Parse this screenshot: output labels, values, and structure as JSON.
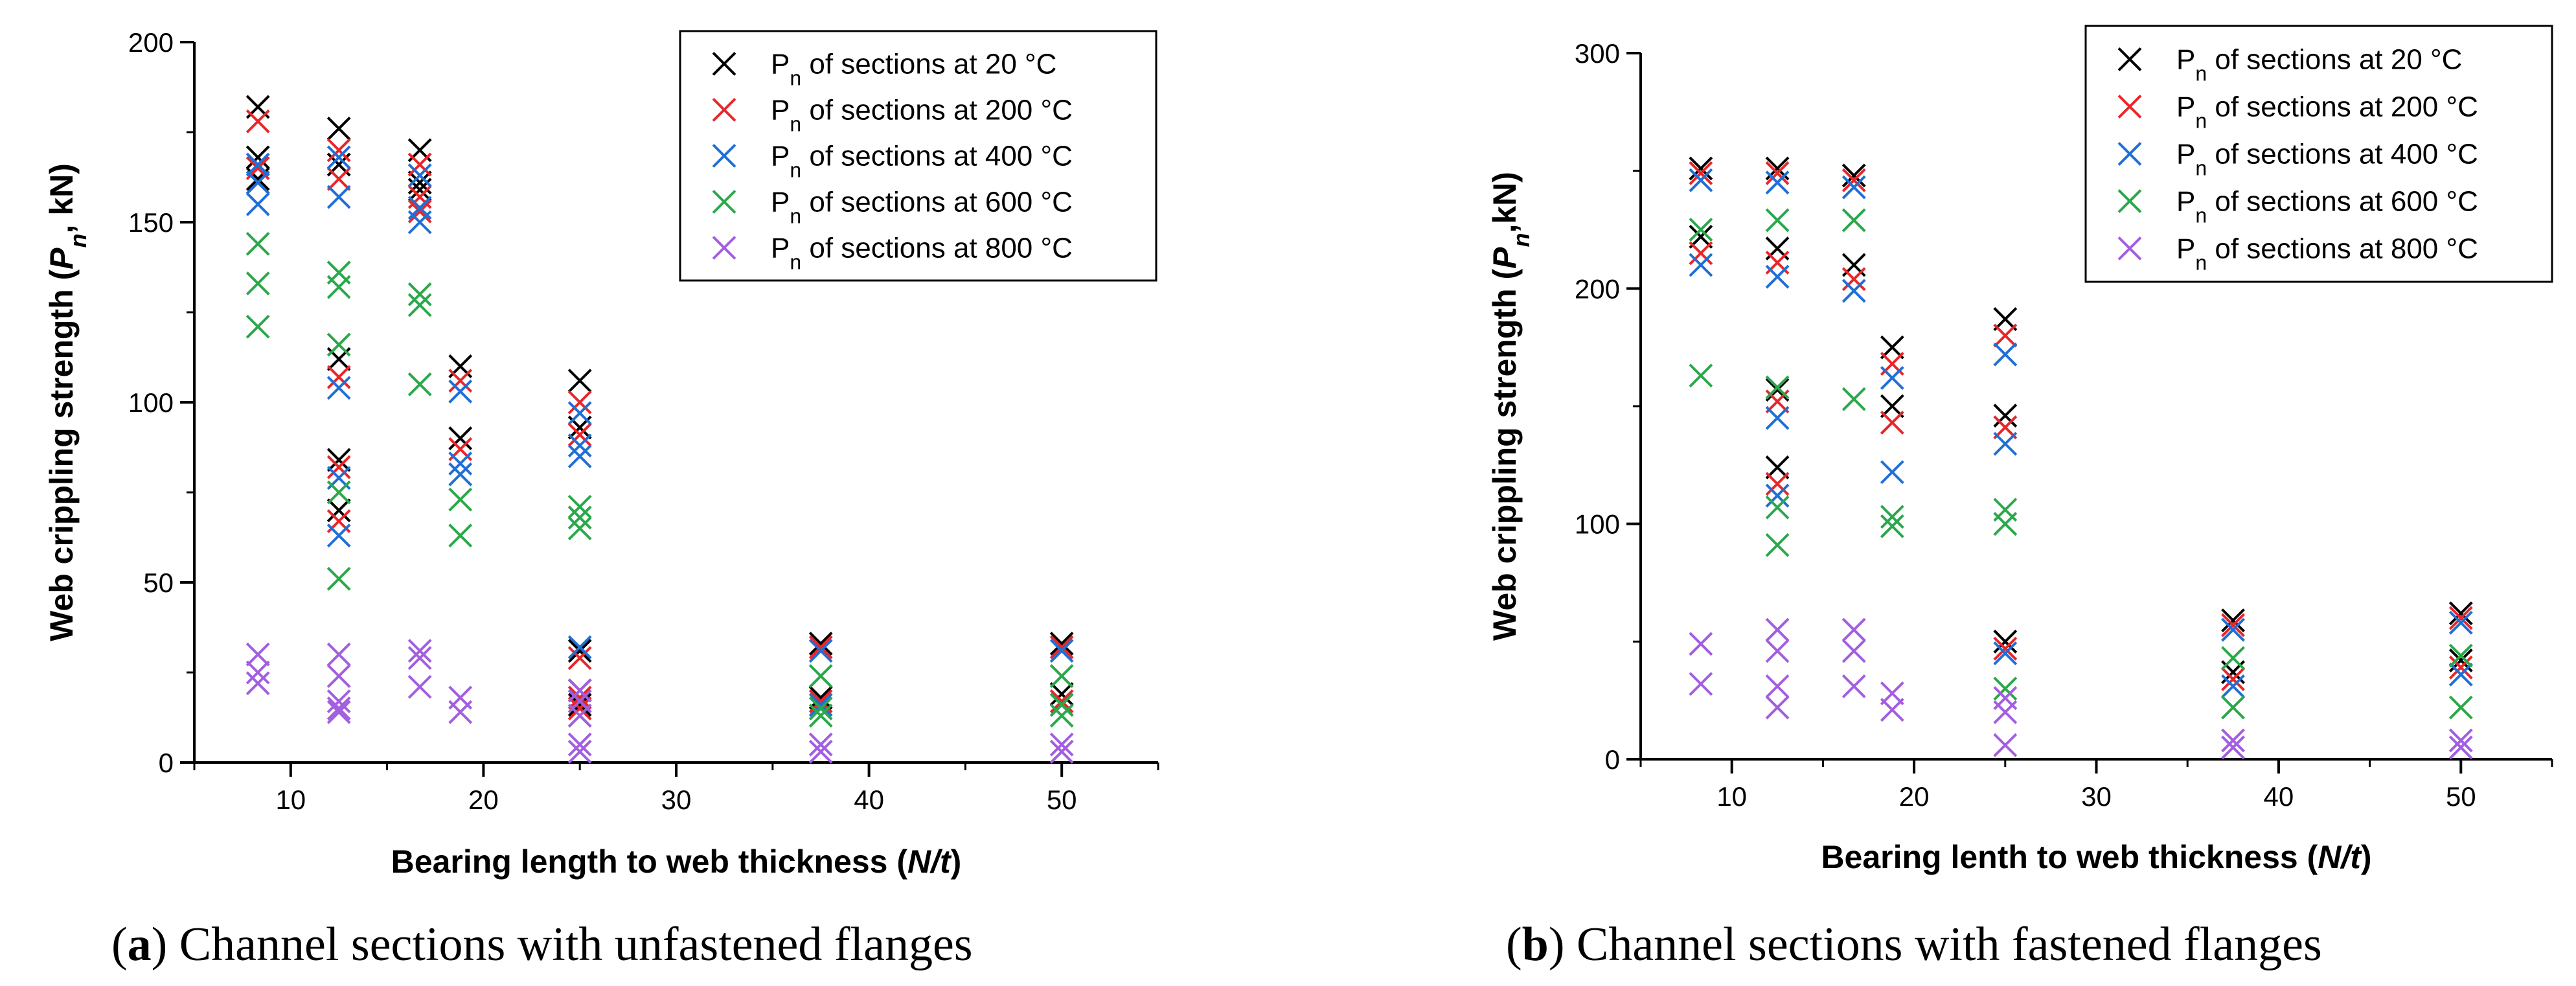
{
  "chart_data": [
    {
      "type": "scatter",
      "caption": {
        "letter": "a",
        "text": ") Channel sections with unfastened flanges"
      },
      "xlabel": {
        "main": "Bearing length to web thickness (",
        "italic": "N/t",
        "end": ")"
      },
      "ylabel": {
        "main": "Web crippling strength (",
        "italic": "P",
        "sub": "n",
        "end": ", kN)"
      },
      "xlim": [
        5,
        55
      ],
      "ylim": [
        0,
        200
      ],
      "xticks": [
        10,
        20,
        30,
        40,
        50
      ],
      "yticks": [
        0,
        50,
        100,
        150,
        200
      ],
      "legend_position": "top-right",
      "series": [
        {
          "name": "P",
          "sub": "n",
          "suffix": " of sections at 20 °C",
          "color": "#000000",
          "x": [
            8.3,
            8.3,
            8.3,
            12.5,
            12.5,
            12.5,
            12.5,
            12.5,
            16.7,
            16.7,
            16.7,
            18.8,
            18.8,
            25,
            25,
            25,
            25,
            25,
            37.5,
            37.5,
            50,
            50
          ],
          "y": [
            182,
            168,
            162,
            176,
            166,
            112,
            84,
            70,
            170,
            161,
            159,
            110,
            90,
            106,
            93,
            31,
            20,
            16,
            33,
            18,
            33,
            19
          ]
        },
        {
          "name": "P",
          "sub": "n",
          "suffix": " of sections at 200 °C",
          "color": "#e8262a",
          "x": [
            8.3,
            8.3,
            8.3,
            12.5,
            12.5,
            12.5,
            12.5,
            12.5,
            16.7,
            16.7,
            16.7,
            18.8,
            18.8,
            25,
            25,
            25,
            25,
            25,
            37.5,
            37.5,
            50,
            50
          ],
          "y": [
            178,
            165,
            161,
            170,
            162,
            107,
            82,
            67,
            166,
            157,
            153,
            106,
            87,
            100,
            91,
            29,
            18,
            15,
            32,
            17,
            32,
            17
          ]
        },
        {
          "name": "P",
          "sub": "n",
          "suffix": " of sections at 400 °C",
          "color": "#1f6fd6",
          "x": [
            8.3,
            8.3,
            8.3,
            12.5,
            12.5,
            12.5,
            12.5,
            12.5,
            16.7,
            16.7,
            16.7,
            18.8,
            18.8,
            18.8,
            25,
            25,
            25,
            25,
            25,
            37.5,
            37.5,
            50,
            50
          ],
          "y": [
            166,
            161,
            155,
            168,
            157,
            104,
            79,
            63,
            163,
            154,
            150,
            103,
            83,
            80,
            97,
            88,
            85,
            32,
            17,
            31,
            16,
            31,
            16
          ]
        },
        {
          "name": "P",
          "sub": "n",
          "suffix": " of sections at 600 °C",
          "color": "#2aa84a",
          "x": [
            8.3,
            8.3,
            8.3,
            12.5,
            12.5,
            12.5,
            12.5,
            12.5,
            16.7,
            16.7,
            16.7,
            18.8,
            18.8,
            25,
            25,
            25,
            25,
            37.5,
            37.5,
            37.5,
            50,
            50,
            50
          ],
          "y": [
            144,
            133,
            121,
            136,
            132,
            116,
            75,
            51,
            130,
            127,
            105,
            73,
            63,
            71,
            68,
            65,
            13,
            24,
            15,
            13,
            24,
            16,
            13
          ]
        },
        {
          "name": "P",
          "sub": "n",
          "suffix": " of sections at 800 °C",
          "color": "#a35ee0",
          "x": [
            8.3,
            8.3,
            8.3,
            12.5,
            12.5,
            12.5,
            12.5,
            12.5,
            16.7,
            16.7,
            16.7,
            18.8,
            18.8,
            25,
            25,
            25,
            25,
            25,
            37.5,
            37.5,
            50,
            50
          ],
          "y": [
            30,
            25,
            22,
            30,
            24,
            17,
            15,
            14,
            31,
            29,
            21,
            18,
            14,
            20,
            17,
            13,
            5,
            3,
            5,
            3,
            5,
            3
          ]
        }
      ]
    },
    {
      "type": "scatter",
      "caption": {
        "letter": "b",
        "text": ") Channel sections with fastened flanges"
      },
      "xlabel": {
        "main": "Bearing lenth to web thickness (",
        "italic": "N/t",
        "end": ")"
      },
      "ylabel": {
        "main": "Web crippling strength (",
        "italic": "P",
        "sub": "n",
        "end": ",kN)"
      },
      "xlim": [
        5,
        55
      ],
      "ylim": [
        0,
        300
      ],
      "xticks": [
        10,
        20,
        30,
        40,
        50
      ],
      "yticks": [
        0,
        100,
        200,
        300
      ],
      "legend_position": "top-right",
      "series": [
        {
          "name": "P",
          "sub": "n",
          "suffix": " of sections at 20 °C",
          "color": "#000000",
          "x": [
            8.3,
            8.3,
            12.5,
            12.5,
            12.5,
            12.5,
            16.7,
            16.7,
            18.8,
            18.8,
            25,
            25,
            25,
            37.5,
            37.5,
            50,
            50
          ],
          "y": [
            251,
            222,
            251,
            217,
            157,
            124,
            248,
            210,
            175,
            150,
            187,
            146,
            50,
            59,
            37,
            62,
            42
          ]
        },
        {
          "name": "P",
          "sub": "n",
          "suffix": " of sections at 200 °C",
          "color": "#e8262a",
          "x": [
            8.3,
            8.3,
            12.5,
            12.5,
            12.5,
            12.5,
            16.7,
            16.7,
            18.8,
            18.8,
            25,
            25,
            25,
            37.5,
            37.5,
            50,
            50
          ],
          "y": [
            249,
            215,
            249,
            211,
            152,
            117,
            246,
            204,
            168,
            143,
            180,
            141,
            47,
            57,
            34,
            60,
            39
          ]
        },
        {
          "name": "P",
          "sub": "n",
          "suffix": " of sections at 400 °C",
          "color": "#1f6fd6",
          "x": [
            8.3,
            8.3,
            12.5,
            12.5,
            12.5,
            12.5,
            16.7,
            16.7,
            18.8,
            18.8,
            25,
            25,
            25,
            37.5,
            37.5,
            50,
            50
          ],
          "y": [
            246,
            210,
            245,
            205,
            145,
            112,
            243,
            199,
            162,
            122,
            172,
            134,
            45,
            55,
            31,
            58,
            36
          ]
        },
        {
          "name": "P",
          "sub": "n",
          "suffix": " of sections at 600 °C",
          "color": "#2aa84a",
          "x": [
            8.3,
            8.3,
            12.5,
            12.5,
            12.5,
            12.5,
            16.7,
            16.7,
            18.8,
            18.8,
            25,
            25,
            25,
            37.5,
            37.5,
            50,
            50
          ],
          "y": [
            225,
            163,
            229,
            158,
            107,
            91,
            229,
            153,
            103,
            99,
            106,
            100,
            30,
            43,
            22,
            44,
            22
          ]
        },
        {
          "name": "P",
          "sub": "n",
          "suffix": " of sections at 800 °C",
          "color": "#a35ee0",
          "x": [
            8.3,
            8.3,
            12.5,
            12.5,
            12.5,
            12.5,
            16.7,
            16.7,
            16.7,
            18.8,
            18.8,
            25,
            25,
            25,
            37.5,
            37.5,
            50,
            50
          ],
          "y": [
            49,
            32,
            55,
            46,
            31,
            22,
            55,
            46,
            31,
            28,
            21,
            26,
            20,
            6,
            8,
            5,
            8,
            5
          ]
        }
      ]
    }
  ]
}
